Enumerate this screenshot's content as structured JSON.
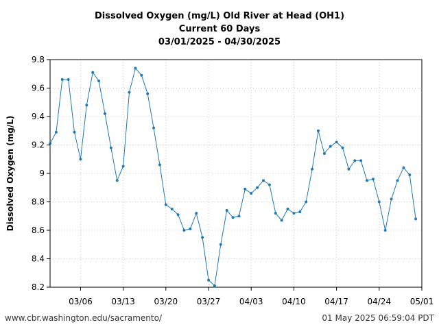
{
  "header": {
    "line1": "Dissolved Oxygen (mg/L) Old River at Head (OH1)",
    "line2": "Current 60 Days",
    "line3": "03/01/2025 - 04/30/2025"
  },
  "footer": {
    "left": "www.cbr.washington.edu/sacramento/",
    "right": "01 May 2025 06:59:04 PDT"
  },
  "chart_data": {
    "type": "line",
    "ylabel": "Dissolved Oxygen (mg/L)",
    "xlabel": "",
    "ylim": [
      8.2,
      9.8
    ],
    "xlim": [
      "2025-03-01",
      "2025-05-01"
    ],
    "yticks": [
      "8.2",
      "8.4",
      "8.6",
      "8.8",
      "9",
      "9.2",
      "9.4",
      "9.6",
      "9.8"
    ],
    "xticks": [
      {
        "date": "2025-03-06",
        "label": "03/06"
      },
      {
        "date": "2025-03-13",
        "label": "03/13"
      },
      {
        "date": "2025-03-20",
        "label": "03/20"
      },
      {
        "date": "2025-03-27",
        "label": "03/27"
      },
      {
        "date": "2025-04-03",
        "label": "04/03"
      },
      {
        "date": "2025-04-10",
        "label": "04/10"
      },
      {
        "date": "2025-04-17",
        "label": "04/17"
      },
      {
        "date": "2025-04-24",
        "label": "04/24"
      },
      {
        "date": "2025-05-01",
        "label": "05/01"
      }
    ],
    "grid": true,
    "color": "#1f77b4",
    "series": [
      {
        "dates": [
          "2025-03-01",
          "2025-03-02",
          "2025-03-03",
          "2025-03-04",
          "2025-03-05",
          "2025-03-06",
          "2025-03-07",
          "2025-03-08",
          "2025-03-09",
          "2025-03-10",
          "2025-03-11",
          "2025-03-12",
          "2025-03-13",
          "2025-03-14",
          "2025-03-15",
          "2025-03-16",
          "2025-03-17",
          "2025-03-18",
          "2025-03-19",
          "2025-03-20",
          "2025-03-21",
          "2025-03-22",
          "2025-03-23",
          "2025-03-24",
          "2025-03-25",
          "2025-03-26",
          "2025-03-27",
          "2025-03-28",
          "2025-03-29",
          "2025-03-30",
          "2025-03-31",
          "2025-04-01",
          "2025-04-02",
          "2025-04-03",
          "2025-04-04",
          "2025-04-05",
          "2025-04-06",
          "2025-04-07",
          "2025-04-08",
          "2025-04-09",
          "2025-04-10",
          "2025-04-11",
          "2025-04-12",
          "2025-04-13",
          "2025-04-14",
          "2025-04-15",
          "2025-04-16",
          "2025-04-17",
          "2025-04-18",
          "2025-04-19",
          "2025-04-20",
          "2025-04-21",
          "2025-04-22",
          "2025-04-23",
          "2025-04-24",
          "2025-04-25",
          "2025-04-26",
          "2025-04-27",
          "2025-04-28",
          "2025-04-29",
          "2025-04-30"
        ],
        "values": [
          9.21,
          9.29,
          9.66,
          9.66,
          9.29,
          9.1,
          9.48,
          9.71,
          9.65,
          9.42,
          9.18,
          8.95,
          9.05,
          9.57,
          9.74,
          9.69,
          9.56,
          9.32,
          9.06,
          8.78,
          8.75,
          8.71,
          8.6,
          8.61,
          8.72,
          8.55,
          8.25,
          8.21,
          8.5,
          8.74,
          8.69,
          8.7,
          8.89,
          8.86,
          8.9,
          8.95,
          8.92,
          8.72,
          8.67,
          8.75,
          8.72,
          8.73,
          8.8,
          9.03,
          9.3,
          9.14,
          9.19,
          9.22,
          9.18,
          9.03,
          9.09,
          9.09,
          8.95,
          8.96,
          8.8,
          8.6,
          8.82,
          8.95,
          9.04,
          8.99,
          8.68
        ]
      }
    ]
  }
}
